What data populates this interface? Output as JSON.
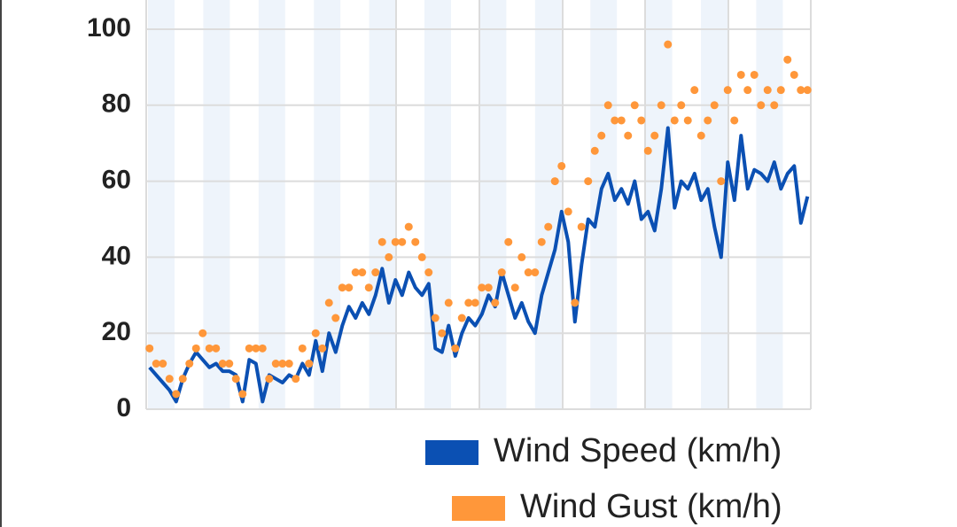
{
  "chart_data": {
    "type": "line",
    "categories": [
      null,
      null,
      null,
      null,
      null,
      null,
      null,
      null,
      null,
      null,
      null,
      null,
      null,
      null,
      null,
      null,
      null,
      null,
      null,
      null,
      null,
      null,
      null,
      null,
      null,
      null,
      null,
      null,
      null,
      null,
      null,
      null,
      null,
      null,
      null,
      null,
      null,
      null,
      null,
      null,
      null,
      null,
      null,
      null,
      null,
      null,
      null,
      null,
      null,
      null,
      null,
      null,
      null,
      null,
      null,
      null,
      null,
      null,
      null,
      null,
      null,
      null,
      null,
      null,
      null,
      null,
      null,
      null,
      null,
      null,
      null,
      null,
      null,
      null,
      null,
      null,
      null,
      null,
      null,
      null,
      null,
      null,
      null,
      null,
      null,
      null,
      null,
      null,
      null,
      null,
      null,
      null,
      null,
      null,
      null,
      null,
      null,
      null,
      null,
      null
    ],
    "series": [
      {
        "name": "Wind Speed (km/h)",
        "color": "#0b50b3",
        "mode": "line",
        "values": [
          11,
          9,
          7,
          5,
          2,
          8,
          12,
          15,
          13,
          11,
          12,
          10,
          10,
          9,
          2,
          13,
          12,
          2,
          9,
          8,
          7,
          9,
          8,
          12,
          9,
          18,
          10,
          20,
          15,
          22,
          27,
          24,
          28,
          25,
          30,
          37,
          28,
          34,
          30,
          36,
          32,
          30,
          33,
          16,
          15,
          22,
          14,
          20,
          24,
          22,
          25,
          30,
          27,
          36,
          30,
          24,
          28,
          23,
          20,
          30,
          36,
          42,
          52,
          44,
          23,
          38,
          50,
          48,
          58,
          62,
          55,
          58,
          54,
          60,
          50,
          52,
          47,
          58,
          74,
          53,
          60,
          58,
          62,
          55,
          58,
          48,
          40,
          65,
          55,
          72,
          58,
          63,
          62,
          60,
          65,
          58,
          62,
          64,
          49,
          56
        ]
      },
      {
        "name": "Wind Gust (km/h)",
        "color": "#ff973a",
        "mode": "markers",
        "values": [
          16,
          12,
          12,
          8,
          4,
          8,
          12,
          16,
          20,
          16,
          16,
          12,
          12,
          8,
          4,
          16,
          16,
          16,
          8,
          12,
          12,
          12,
          8,
          16,
          12,
          20,
          16,
          28,
          24,
          32,
          32,
          36,
          36,
          32,
          36,
          44,
          40,
          44,
          44,
          48,
          44,
          40,
          36,
          24,
          20,
          28,
          16,
          24,
          28,
          28,
          32,
          32,
          28,
          36,
          44,
          32,
          40,
          36,
          36,
          44,
          48,
          60,
          64,
          52,
          28,
          48,
          60,
          68,
          72,
          80,
          76,
          76,
          72,
          80,
          76,
          68,
          72,
          80,
          96,
          76,
          80,
          76,
          84,
          72,
          76,
          80,
          60,
          84,
          76,
          88,
          84,
          88,
          80,
          84,
          80,
          84,
          92,
          88,
          84,
          84
        ]
      }
    ],
    "ylim": [
      0,
      105
    ],
    "yticks": [
      0,
      20,
      40,
      60,
      80,
      100
    ],
    "grid": true
  }
}
